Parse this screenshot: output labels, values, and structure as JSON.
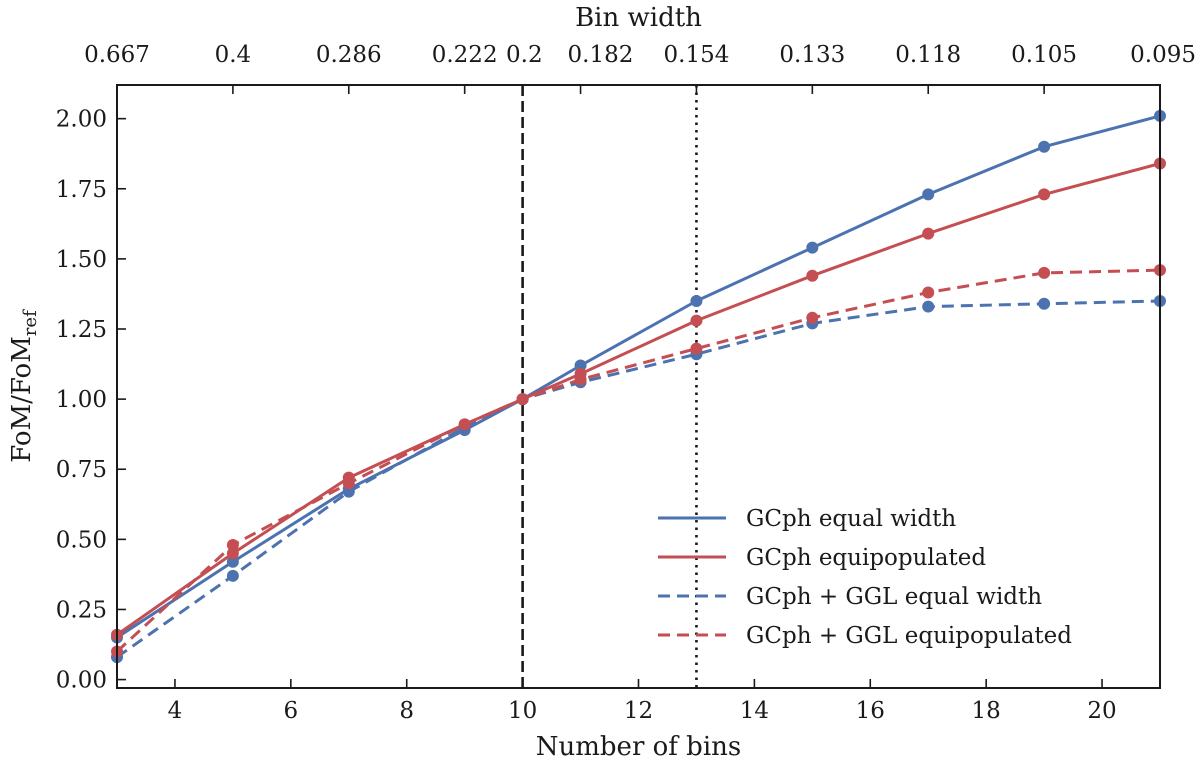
{
  "chart_data": {
    "type": "line",
    "xlabel": "Number of bins",
    "ylabel_main": "FoM/FoM",
    "ylabel_sub": "ref",
    "top_axis_label": "Bin width",
    "xlim": [
      3,
      21
    ],
    "ylim": [
      -0.03,
      2.12
    ],
    "x_ticks": [
      4,
      6,
      8,
      10,
      12,
      14,
      16,
      18,
      20
    ],
    "y_ticks": [
      "0.00",
      "0.25",
      "0.50",
      "0.75",
      "1.00",
      "1.25",
      "1.50",
      "1.75",
      "2.00"
    ],
    "top_ticks": [
      {
        "x": 3,
        "label": "0.667"
      },
      {
        "x": 5,
        "label": "0.4"
      },
      {
        "x": 7,
        "label": "0.286"
      },
      {
        "x": 9,
        "label": "0.222"
      },
      {
        "x": 10,
        "label": "0.2"
      },
      {
        "x": 11,
        "label": "0.182"
      },
      {
        "x": 13,
        "label": "0.154"
      },
      {
        "x": 15,
        "label": "0.133"
      },
      {
        "x": 17,
        "label": "0.118"
      },
      {
        "x": 19,
        "label": "0.105"
      },
      {
        "x": 21,
        "label": "0.095"
      }
    ],
    "vlines": [
      {
        "x": 10,
        "style": "dashed"
      },
      {
        "x": 13,
        "style": "dotted"
      }
    ],
    "series": [
      {
        "name": "GCph equal width",
        "color": "#4c72b0",
        "style": "solid",
        "x": [
          3,
          5,
          7,
          9,
          10,
          11,
          13,
          15,
          17,
          19,
          21
        ],
        "y": [
          0.15,
          0.42,
          0.68,
          0.89,
          1.0,
          1.12,
          1.35,
          1.54,
          1.73,
          1.9,
          2.01
        ]
      },
      {
        "name": "GCph equipopulated",
        "color": "#c44e52",
        "style": "solid",
        "x": [
          3,
          5,
          7,
          9,
          10,
          11,
          13,
          15,
          17,
          19,
          21
        ],
        "y": [
          0.16,
          0.45,
          0.72,
          0.91,
          1.0,
          1.09,
          1.28,
          1.44,
          1.59,
          1.73,
          1.84
        ]
      },
      {
        "name": "GCph + GGL equal width",
        "color": "#4c72b0",
        "style": "dashed",
        "x": [
          3,
          5,
          7,
          9,
          10,
          11,
          13,
          15,
          17,
          19,
          21
        ],
        "y": [
          0.08,
          0.37,
          0.67,
          0.9,
          1.0,
          1.06,
          1.16,
          1.27,
          1.33,
          1.34,
          1.35
        ]
      },
      {
        "name": "GCph + GGL equipopulated",
        "color": "#c44e52",
        "style": "dashed",
        "x": [
          3,
          5,
          7,
          9,
          10,
          11,
          13,
          15,
          17,
          19,
          21
        ],
        "y": [
          0.1,
          0.48,
          0.7,
          0.91,
          1.0,
          1.07,
          1.18,
          1.29,
          1.38,
          1.45,
          1.46
        ]
      }
    ],
    "legend_position": "lower-right"
  }
}
